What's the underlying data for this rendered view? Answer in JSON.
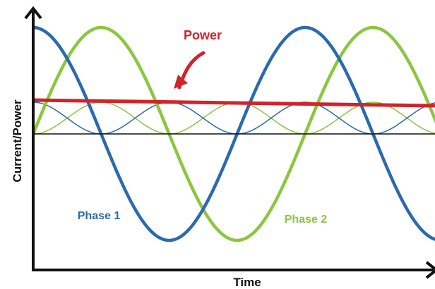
{
  "labels": {
    "power": "Power",
    "y_axis": "Current/Power",
    "x_axis": "Time",
    "phase1": "Phase 1",
    "phase2": "Phase 2"
  }
}
